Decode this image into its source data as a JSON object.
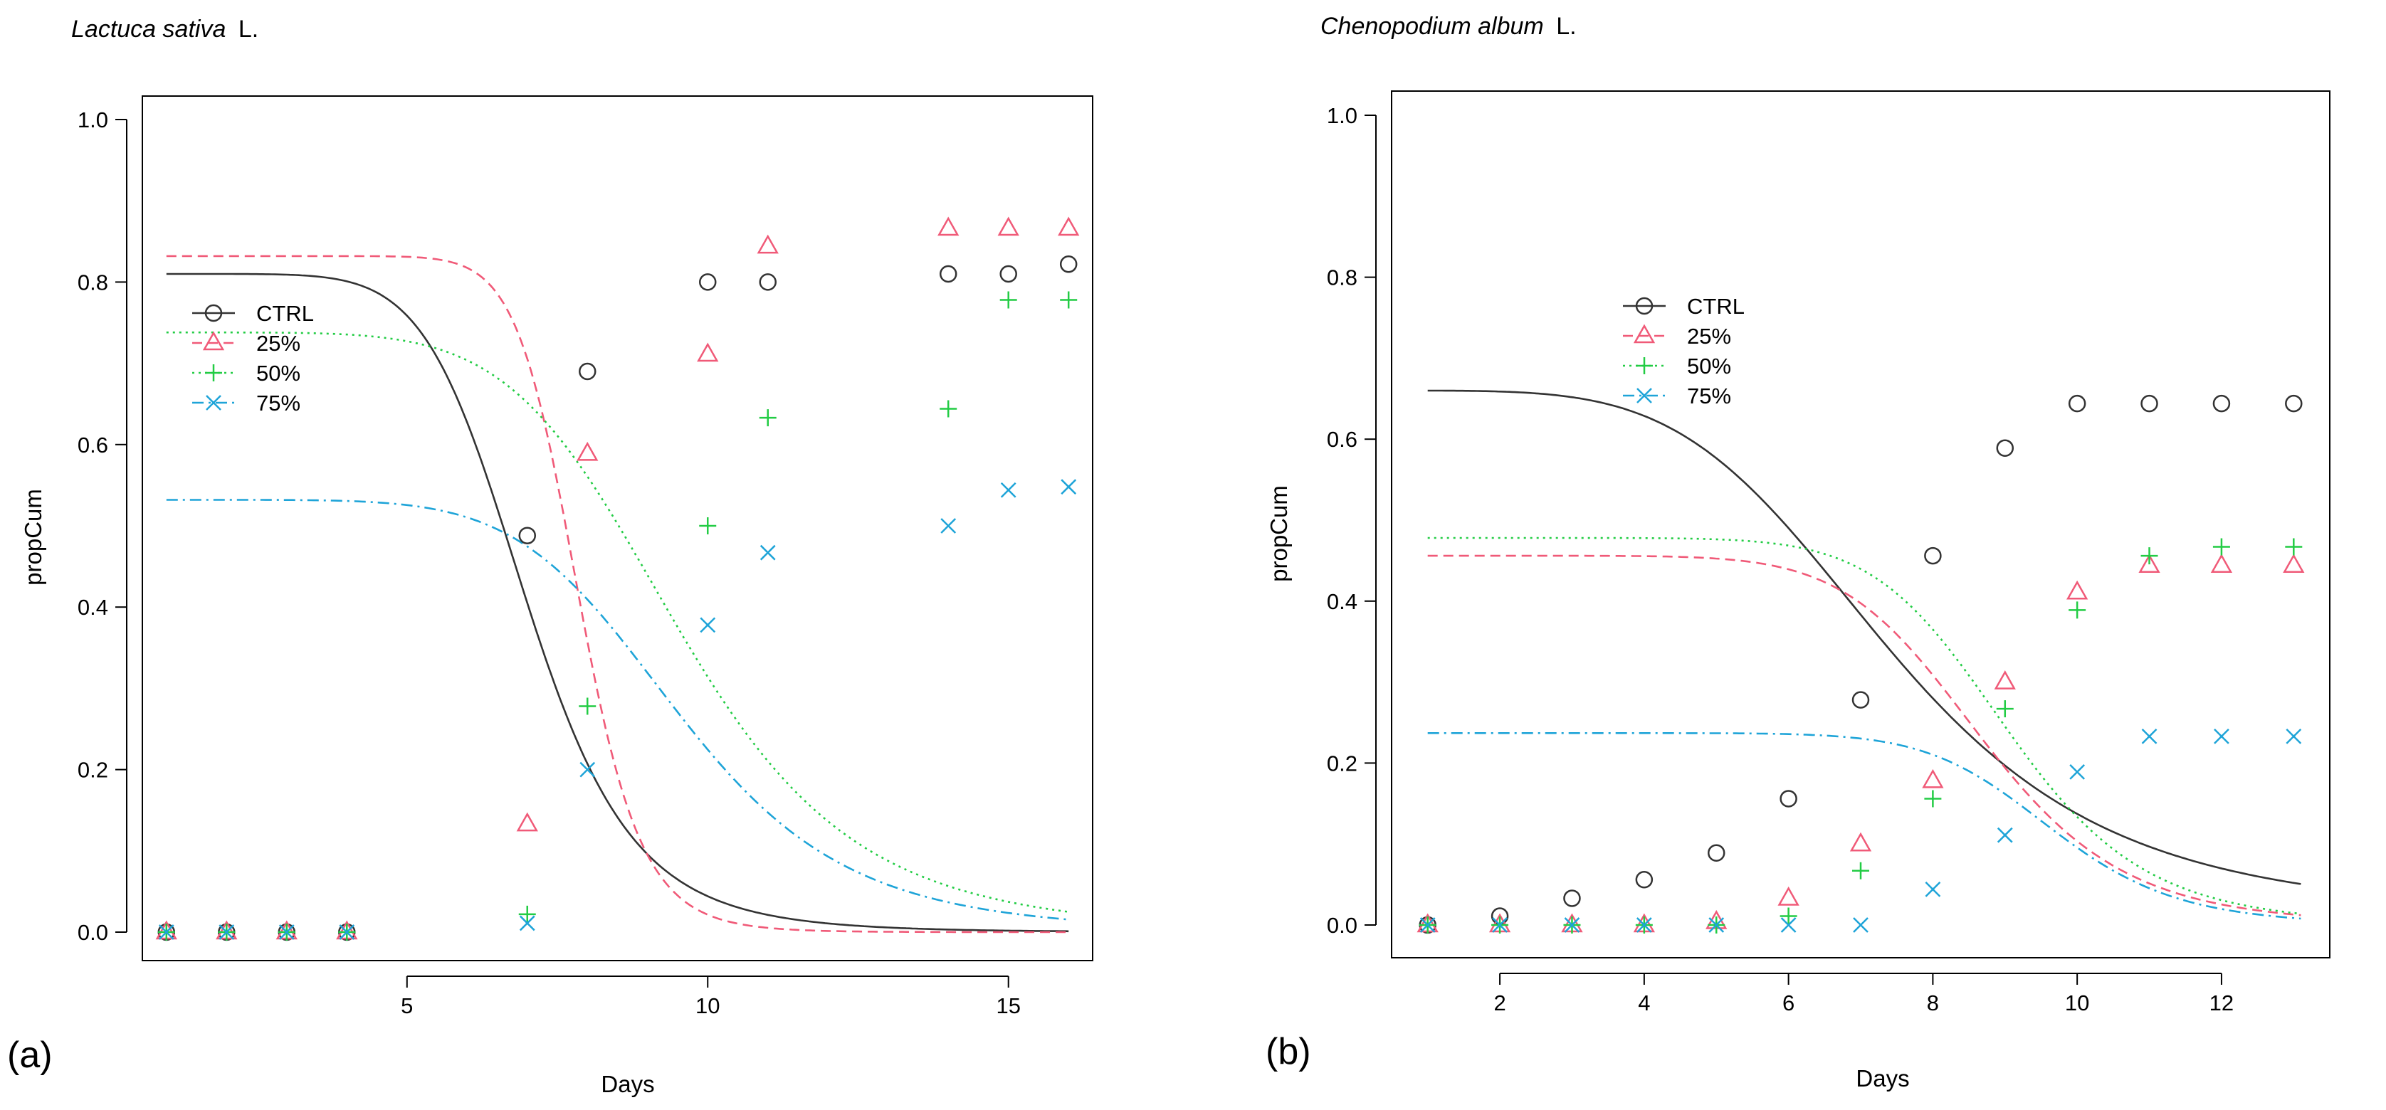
{
  "chart_data": [
    {
      "type": "scatter",
      "panel_label": "(a)",
      "title_species": "Lactuca sativa",
      "title_author": "L.",
      "xlabel": "Days",
      "ylabel": "propCum",
      "xlim": [
        0.6,
        16.4
      ],
      "ylim": [
        0,
        1.0
      ],
      "xticks": [
        5,
        10,
        15
      ],
      "yticks": [
        0.0,
        0.2,
        0.4,
        0.6,
        0.8,
        1.0
      ],
      "ytick_labels": [
        "0.0",
        "0.2",
        "0.4",
        "0.6",
        "0.8",
        "1.0"
      ],
      "legend_position": "middle-left",
      "series": [
        {
          "name": "CTRL",
          "marker": "circle",
          "color": "#333333",
          "dash": "solid",
          "points": [
            [
              1,
              0
            ],
            [
              2,
              0
            ],
            [
              3,
              0
            ],
            [
              4,
              0
            ],
            [
              7,
              0.488
            ],
            [
              8,
              0.69
            ],
            [
              10,
              0.8
            ],
            [
              11,
              0.8
            ],
            [
              14,
              0.81
            ],
            [
              15,
              0.81
            ],
            [
              16,
              0.822
            ]
          ],
          "curve": {
            "d": 0.81,
            "b": 8.0,
            "e": 7.0
          }
        },
        {
          "name": "25%",
          "marker": "triangle",
          "color": "#f05a78",
          "dash": "dashed",
          "points": [
            [
              1,
              0
            ],
            [
              2,
              0
            ],
            [
              3,
              0
            ],
            [
              4,
              0
            ],
            [
              7,
              0.133
            ],
            [
              8,
              0.589
            ],
            [
              10,
              0.711
            ],
            [
              11,
              0.844
            ],
            [
              14,
              0.866
            ],
            [
              15,
              0.866
            ],
            [
              16,
              0.866
            ]
          ],
          "curve": {
            "d": 0.832,
            "b": 15.0,
            "e": 7.85
          }
        },
        {
          "name": "50%",
          "marker": "plus",
          "color": "#22cc44",
          "dash": "dotted",
          "points": [
            [
              1,
              0
            ],
            [
              2,
              0
            ],
            [
              3,
              0
            ],
            [
              4,
              0
            ],
            [
              7,
              0.022
            ],
            [
              8,
              0.278
            ],
            [
              10,
              0.5
            ],
            [
              11,
              0.633
            ],
            [
              14,
              0.644
            ],
            [
              15,
              0.778
            ],
            [
              16,
              0.778
            ]
          ],
          "curve": {
            "d": 0.738,
            "b": 6.5,
            "e": 9.55
          }
        },
        {
          "name": "75%",
          "marker": "cross",
          "color": "#1ea4d8",
          "dash": "dotdash",
          "points": [
            [
              1,
              0
            ],
            [
              2,
              0
            ],
            [
              3,
              0
            ],
            [
              4,
              0
            ],
            [
              7,
              0.011
            ],
            [
              8,
              0.2
            ],
            [
              10,
              0.378
            ],
            [
              11,
              0.467
            ],
            [
              14,
              0.5
            ],
            [
              15,
              0.544
            ],
            [
              16,
              0.548
            ]
          ],
          "curve": {
            "d": 0.532,
            "b": 6.8,
            "e": 9.55
          }
        }
      ]
    },
    {
      "type": "scatter",
      "panel_label": "(b)",
      "title_species": "Chenopodium album",
      "title_author": "L.",
      "xlabel": "Days",
      "ylabel": "propCum",
      "xlim": [
        0.5,
        13.5
      ],
      "ylim": [
        0,
        1.0
      ],
      "xticks": [
        2,
        4,
        6,
        8,
        10,
        12
      ],
      "yticks": [
        0.0,
        0.2,
        0.4,
        0.6,
        0.8,
        1.0
      ],
      "ytick_labels": [
        "0.0",
        "0.2",
        "0.4",
        "0.6",
        "0.8",
        "1.0"
      ],
      "legend_position": "upper-middle",
      "series": [
        {
          "name": "CTRL",
          "marker": "circle",
          "color": "#333333",
          "dash": "solid",
          "points": [
            [
              1,
              0
            ],
            [
              2,
              0.011
            ],
            [
              3,
              0.033
            ],
            [
              4,
              0.056
            ],
            [
              5,
              0.089
            ],
            [
              6,
              0.156
            ],
            [
              7,
              0.278
            ],
            [
              8,
              0.456
            ],
            [
              9,
              0.589
            ],
            [
              10,
              0.644
            ],
            [
              11,
              0.644
            ],
            [
              12,
              0.644
            ],
            [
              13,
              0.644
            ]
          ],
          "curve": {
            "d": 0.66,
            "b": 4.8,
            "e": 7.45,
            "c": 0.01
          }
        },
        {
          "name": "25%",
          "marker": "triangle",
          "color": "#f05a78",
          "dash": "dashed",
          "points": [
            [
              1,
              0
            ],
            [
              2,
              0
            ],
            [
              3,
              0
            ],
            [
              4,
              0
            ],
            [
              5,
              0.004
            ],
            [
              6,
              0.033
            ],
            [
              7,
              0.1
            ],
            [
              8,
              0.178
            ],
            [
              9,
              0.3
            ],
            [
              10,
              0.411
            ],
            [
              11,
              0.444
            ],
            [
              12,
              0.444
            ],
            [
              13,
              0.444
            ]
          ],
          "curve": {
            "d": 0.456,
            "b": 8.8,
            "e": 8.7
          }
        },
        {
          "name": "50%",
          "marker": "plus",
          "color": "#22cc44",
          "dash": "dotted",
          "points": [
            [
              1,
              0
            ],
            [
              2,
              0
            ],
            [
              3,
              0
            ],
            [
              4,
              0
            ],
            [
              5,
              0
            ],
            [
              6,
              0.011
            ],
            [
              7,
              0.067
            ],
            [
              8,
              0.156
            ],
            [
              9,
              0.267
            ],
            [
              10,
              0.389
            ],
            [
              11,
              0.456
            ],
            [
              12,
              0.467
            ],
            [
              13,
              0.467
            ]
          ],
          "curve": {
            "d": 0.478,
            "b": 9.5,
            "e": 9.05
          }
        },
        {
          "name": "75%",
          "marker": "cross",
          "color": "#1ea4d8",
          "dash": "dotdash",
          "points": [
            [
              1,
              0
            ],
            [
              2,
              0
            ],
            [
              3,
              0
            ],
            [
              4,
              0
            ],
            [
              5,
              0
            ],
            [
              6,
              0
            ],
            [
              7,
              0
            ],
            [
              8,
              0.044
            ],
            [
              9,
              0.111
            ],
            [
              10,
              0.189
            ],
            [
              11,
              0.233
            ],
            [
              12,
              0.233
            ],
            [
              13,
              0.233
            ]
          ],
          "curve": {
            "d": 0.237,
            "b": 11.0,
            "e": 9.65
          }
        }
      ]
    }
  ]
}
